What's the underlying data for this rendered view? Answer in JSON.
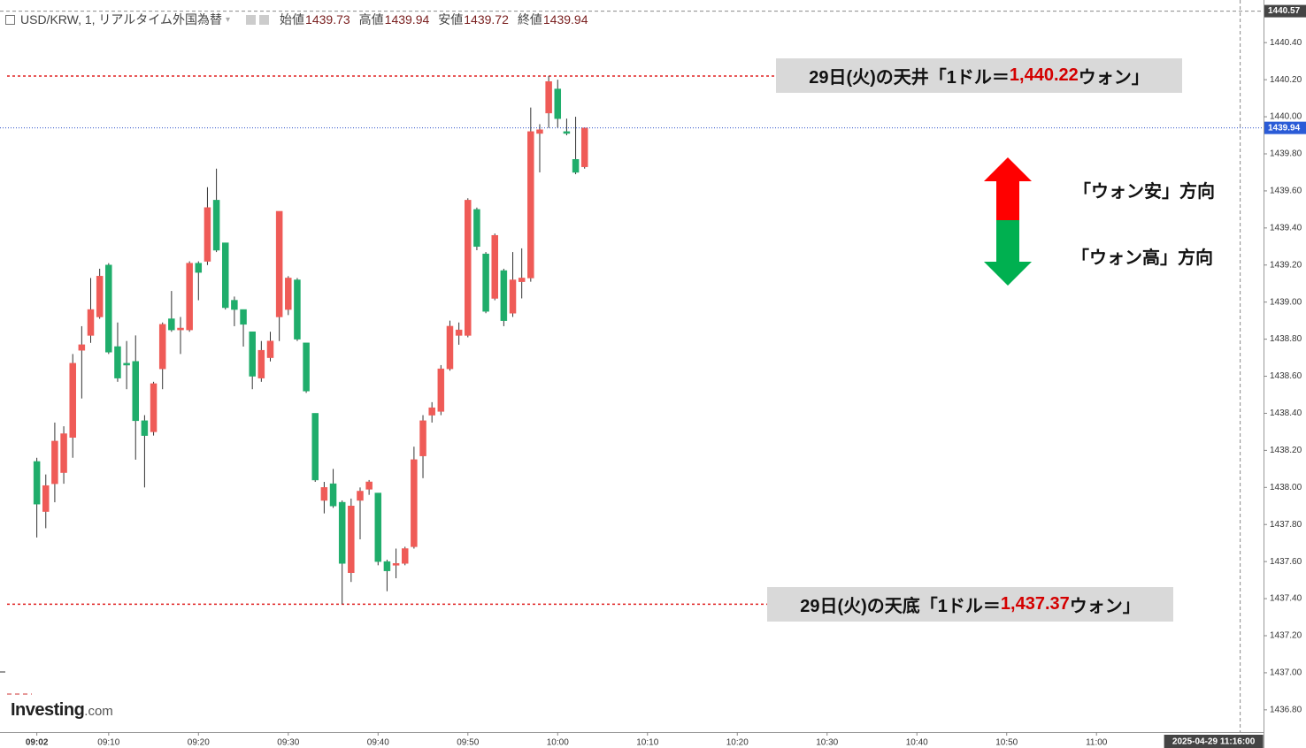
{
  "chart_data": {
    "type": "candlestick",
    "title": "USD/KRW, 1, リアルタイム外国為替",
    "ohlc_labels": [
      "始値",
      "高値",
      "安値",
      "終値"
    ],
    "x": [
      542,
      543,
      544,
      545,
      546,
      547,
      548,
      549,
      550,
      551,
      552,
      553,
      554,
      555,
      556,
      557,
      558,
      559,
      560,
      561,
      562,
      563,
      564,
      565,
      566,
      567,
      568,
      569,
      570,
      571,
      572,
      573,
      574,
      575,
      576,
      577,
      578,
      579,
      580,
      581,
      582,
      583,
      584,
      585,
      586,
      587,
      588,
      589,
      590,
      591,
      592,
      593,
      594,
      595,
      596,
      597,
      598,
      599,
      600,
      601,
      602,
      603
    ],
    "open": [
      1438.14,
      1437.87,
      1438.02,
      1438.08,
      1438.27,
      1438.74,
      1438.82,
      1438.92,
      1439.2,
      1438.76,
      1438.67,
      1438.68,
      1438.36,
      1438.3,
      1438.64,
      1438.91,
      1438.85,
      1438.85,
      1439.21,
      1439.22,
      1439.55,
      1439.32,
      1439.01,
      1438.96,
      1438.84,
      1438.59,
      1438.7,
      1438.92,
      1438.96,
      1439.12,
      1438.78,
      1438.4,
      1437.93,
      1438.02,
      1437.92,
      1437.54,
      1437.93,
      1437.99,
      1437.97,
      1437.6,
      1437.58,
      1437.59,
      1437.68,
      1438.17,
      1438.39,
      1438.41,
      1438.64,
      1438.82,
      1438.82,
      1439.5,
      1439.26,
      1439.02,
      1439.17,
      1438.94,
      1439.11,
      1439.13,
      1439.91,
      1440.02,
      1440.15,
      1439.92,
      1439.77,
      1439.73
    ],
    "high": [
      1438.16,
      1438.07,
      1438.35,
      1438.33,
      1438.72,
      1438.87,
      1439.13,
      1439.18,
      1439.21,
      1438.89,
      1438.79,
      1438.82,
      1438.39,
      1438.57,
      1438.89,
      1439.06,
      1438.92,
      1439.22,
      1439.22,
      1439.62,
      1439.72,
      1439.32,
      1439.03,
      1438.96,
      1438.84,
      1438.79,
      1438.84,
      1439.49,
      1439.14,
      1439.13,
      1438.78,
      1438.4,
      1438.03,
      1438.1,
      1437.93,
      1437.94,
      1438.0,
      1438.04,
      1437.97,
      1437.61,
      1437.67,
      1437.68,
      1438.22,
      1438.39,
      1438.46,
      1438.66,
      1438.9,
      1438.89,
      1439.56,
      1439.51,
      1439.27,
      1439.37,
      1439.18,
      1439.27,
      1439.29,
      1440.05,
      1439.96,
      1440.22,
      1440.2,
      1439.99,
      1440.0,
      1439.94
    ],
    "low": [
      1437.73,
      1437.78,
      1437.92,
      1438.02,
      1438.16,
      1438.48,
      1438.78,
      1438.91,
      1438.72,
      1438.57,
      1438.53,
      1438.15,
      1438.0,
      1438.28,
      1438.53,
      1438.84,
      1438.72,
      1438.84,
      1439.01,
      1439.2,
      1439.27,
      1438.96,
      1438.87,
      1438.76,
      1438.53,
      1438.57,
      1438.68,
      1438.79,
      1438.93,
      1438.79,
      1438.51,
      1438.03,
      1437.86,
      1437.89,
      1437.37,
      1437.49,
      1437.72,
      1437.96,
      1437.58,
      1437.44,
      1437.51,
      1437.58,
      1437.67,
      1438.05,
      1438.35,
      1438.39,
      1438.63,
      1438.77,
      1438.81,
      1439.28,
      1438.94,
      1439.01,
      1438.87,
      1438.92,
      1439.02,
      1439.11,
      1439.7,
      1439.94,
      1439.94,
      1439.9,
      1439.69,
      1439.72
    ],
    "close": [
      1437.91,
      1438.01,
      1438.25,
      1438.29,
      1438.67,
      1438.77,
      1438.96,
      1439.14,
      1438.73,
      1438.59,
      1438.66,
      1438.36,
      1438.28,
      1438.56,
      1438.88,
      1438.85,
      1438.86,
      1439.21,
      1439.16,
      1439.51,
      1439.28,
      1438.97,
      1438.96,
      1438.88,
      1438.6,
      1438.74,
      1438.79,
      1439.49,
      1439.13,
      1438.8,
      1438.52,
      1438.04,
      1438.0,
      1437.9,
      1437.59,
      1437.9,
      1437.98,
      1438.03,
      1437.6,
      1437.55,
      1437.59,
      1437.67,
      1438.15,
      1438.36,
      1438.43,
      1438.64,
      1438.87,
      1438.85,
      1439.55,
      1439.3,
      1438.95,
      1439.36,
      1438.9,
      1439.12,
      1439.13,
      1439.92,
      1439.93,
      1440.19,
      1439.99,
      1439.91,
      1439.7,
      1439.94
    ],
    "up_color": "#ef5b57",
    "down_color": "#1fad6b",
    "xlim": [
      537.9,
      678.6
    ],
    "xticks": [
      {
        "value": 542,
        "label": "09:02"
      },
      {
        "value": 550,
        "label": "09:10"
      },
      {
        "value": 560,
        "label": "09:20"
      },
      {
        "value": 570,
        "label": "09:30"
      },
      {
        "value": 580,
        "label": "09:40"
      },
      {
        "value": 590,
        "label": "09:50"
      },
      {
        "value": 600,
        "label": "10:00"
      },
      {
        "value": 610,
        "label": "10:10"
      },
      {
        "value": 620,
        "label": "10:20"
      },
      {
        "value": 630,
        "label": "10:30"
      },
      {
        "value": 640,
        "label": "10:40"
      },
      {
        "value": 650,
        "label": "10:50"
      },
      {
        "value": 660,
        "label": "11:00"
      }
    ],
    "ylim": [
      1436.68,
      1440.63
    ],
    "yticks": [
      {
        "value": 1436.8,
        "label": "1436.80"
      },
      {
        "value": 1437.0,
        "label": "1437.00"
      },
      {
        "value": 1437.2,
        "label": "1437.20"
      },
      {
        "value": 1437.4,
        "label": "1437.40"
      },
      {
        "value": 1437.6,
        "label": "1437.60"
      },
      {
        "value": 1437.8,
        "label": "1437.80"
      },
      {
        "value": 1438.0,
        "label": "1438.00"
      },
      {
        "value": 1438.2,
        "label": "1438.20"
      },
      {
        "value": 1438.4,
        "label": "1438.40"
      },
      {
        "value": 1438.6,
        "label": "1438.60"
      },
      {
        "value": 1438.8,
        "label": "1438.80"
      },
      {
        "value": 1439.0,
        "label": "1439.00"
      },
      {
        "value": 1439.2,
        "label": "1439.20"
      },
      {
        "value": 1439.4,
        "label": "1439.40"
      },
      {
        "value": 1439.6,
        "label": "1439.60"
      },
      {
        "value": 1439.8,
        "label": "1439.80"
      },
      {
        "value": 1440.0,
        "label": "1440.00"
      },
      {
        "value": 1440.2,
        "label": "1440.20"
      },
      {
        "value": 1440.4,
        "label": "1440.40"
      }
    ],
    "grid": false,
    "crosshair": {
      "x": 676,
      "x_label": "2025-04-29 11:16:00",
      "y": 1440.57
    },
    "annotations": [
      {
        "prefix": "29日(火)の天井「1ドル＝",
        "value": 1440.22,
        "label": "1,440.22",
        "suffix": "ウォン」"
      },
      {
        "prefix": "29日(火)の天底「1ドル＝",
        "value": 1437.37,
        "label": "1,437.37",
        "suffix": "ウォン」"
      }
    ],
    "direction_labels": [
      "「ウォン安」方向",
      "「ウォン高」方向"
    ],
    "logo": [
      "Investing",
      ".com"
    ]
  }
}
